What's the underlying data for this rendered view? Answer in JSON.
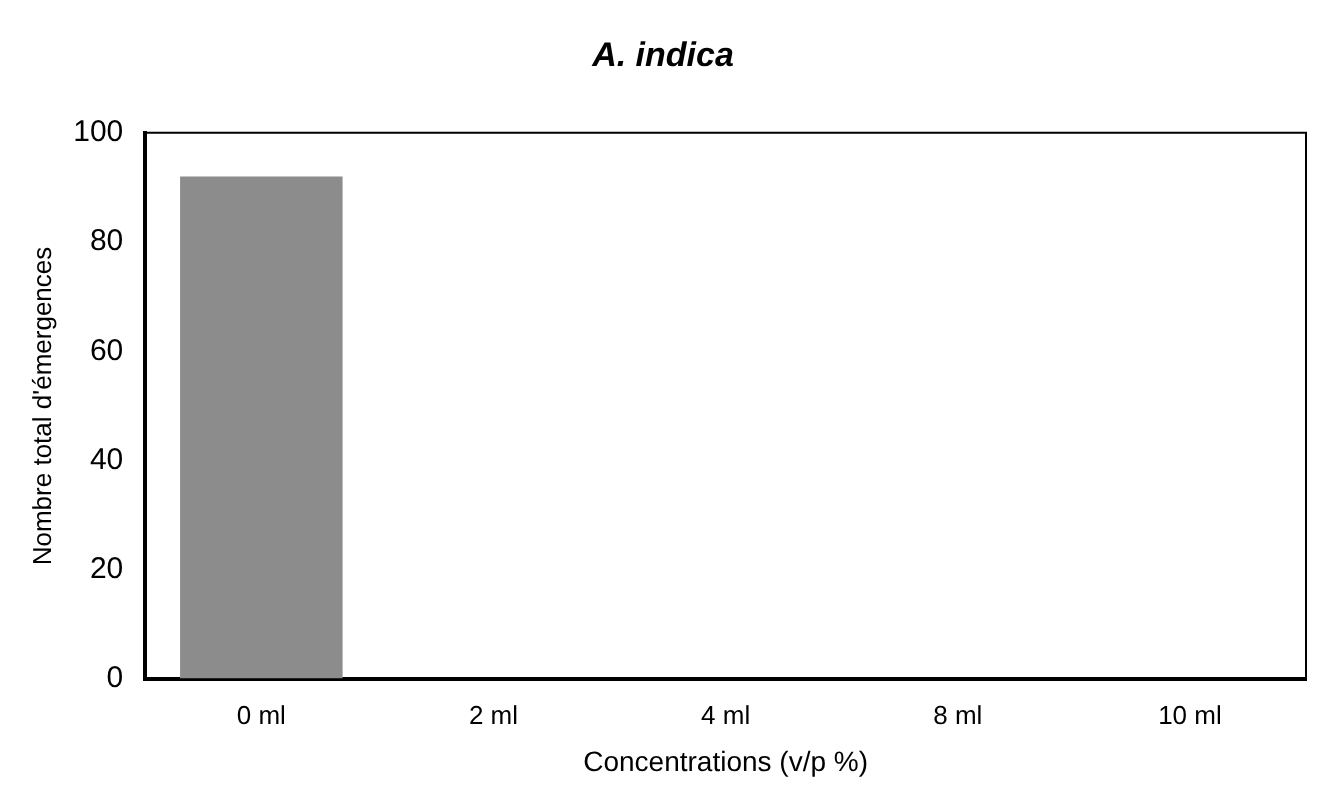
{
  "chart_data": {
    "type": "bar",
    "title": "A. indica",
    "xlabel": "Concentrations (v/p %)",
    "ylabel": "Nombre total d'émergences",
    "categories": [
      "0 ml",
      "2 ml",
      "4 ml",
      "8 ml",
      "10 ml"
    ],
    "values": [
      92,
      0,
      0,
      0,
      0
    ],
    "color": "#8c8c8c",
    "ylim": [
      0,
      100
    ],
    "yticks": [
      0,
      20,
      40,
      60,
      80,
      100
    ],
    "grid": false
  }
}
